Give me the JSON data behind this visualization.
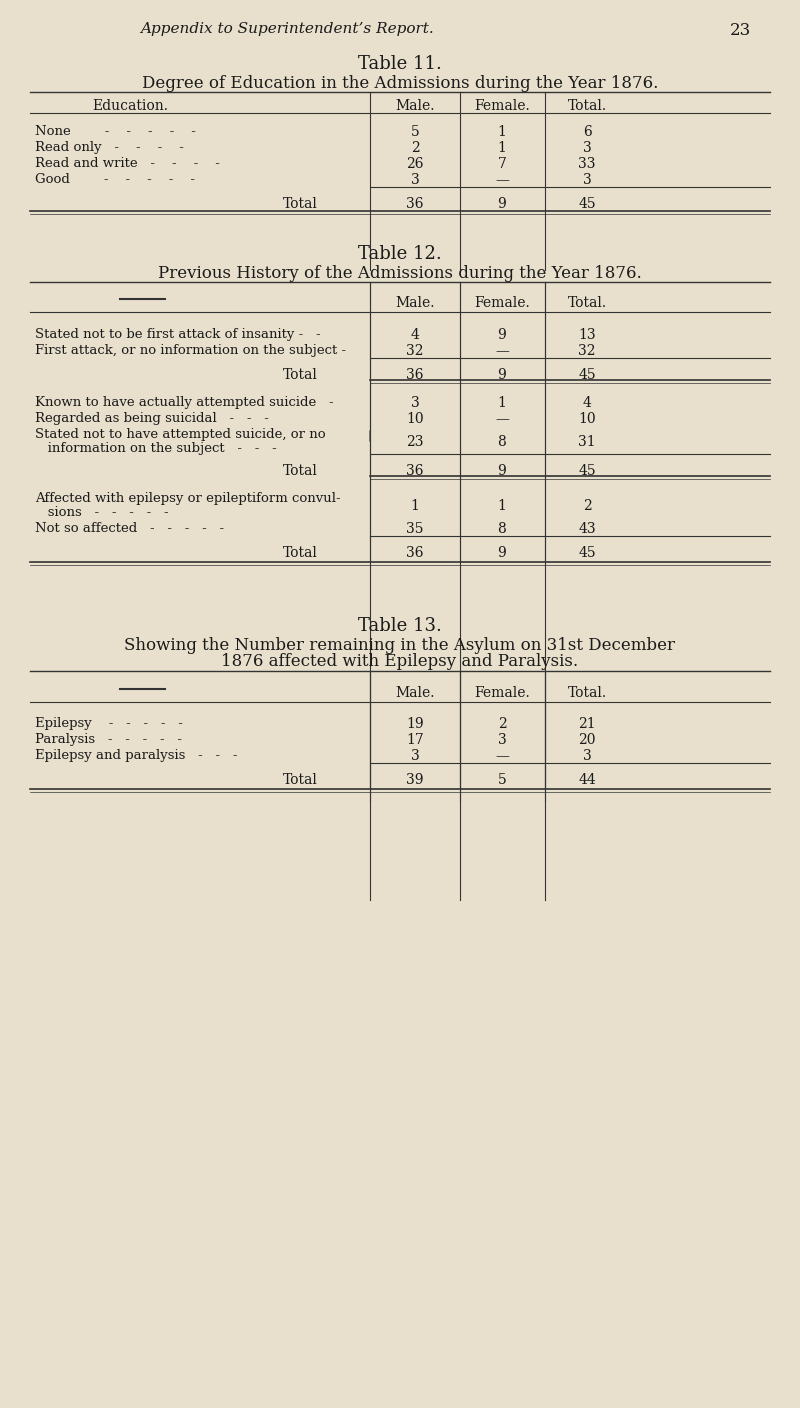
{
  "bg_color": "#e8e0cc",
  "text_color": "#1a1a1a",
  "page_header": "Appendix to Superintendent’s Report.",
  "page_number": "23",
  "table11_title": "Table 11.",
  "table11_subtitle": "Degree of Education in the Admissions during the Year 1876.",
  "table11_col_headers": [
    "Education.",
    "Male.",
    "Female.",
    "Total."
  ],
  "table11_rows": [
    [
      "None        -    -    -    -    -",
      "5",
      "1",
      "6"
    ],
    [
      "Read only   -    -    -    -",
      "2",
      "1",
      "3"
    ],
    [
      "Read and write   -    -    -    -",
      "26",
      "7",
      "33"
    ],
    [
      "Good        -    -    -    -    -",
      "3",
      "—",
      "3"
    ]
  ],
  "table11_total": [
    "Total",
    "36",
    "9",
    "45"
  ],
  "table12_title": "Table 12.",
  "table12_subtitle": "Previous History of the Admissions during the Year 1876.",
  "table12_col_headers": [
    "",
    "Male.",
    "Female.",
    "Total."
  ],
  "table12_section1_rows": [
    [
      "Stated not to be first attack of insanity -   -",
      "4",
      "9",
      "13"
    ],
    [
      "First attack, or no information on the subject -",
      "32",
      "—",
      "32"
    ]
  ],
  "table12_section1_total": [
    "Total",
    "36",
    "9",
    "45"
  ],
  "table12_section2_rows": [
    [
      "Known to have actually attempted suicide   -",
      "3",
      "1",
      "4"
    ],
    [
      "Regarded as being suicidal   -   -   -",
      "10",
      "—",
      "10"
    ],
    [
      "Stated not to have attempted suicide, or no\n   information on the subject      -    -    -",
      "23",
      "8",
      "31"
    ]
  ],
  "table12_section2_total": [
    "Total",
    "36",
    "9",
    "45"
  ],
  "table12_section3_rows": [
    [
      "Affected with epilepsy or epileptiform convul-\n   sions   -   -   -   -   -",
      "1",
      "1",
      "2"
    ],
    [
      "Not so affected   -   -   -   -   -",
      "35",
      "8",
      "43"
    ]
  ],
  "table12_section3_total": [
    "Total",
    "36",
    "9",
    "45"
  ],
  "table13_title": "Table 13.",
  "table13_subtitle1": "Showing the Number remaining in the Asylum on 31st December",
  "table13_subtitle2": "1876 affected with Epilepsy and Paralysis.",
  "table13_col_headers": [
    "",
    "Male.",
    "Female.",
    "Total."
  ],
  "table13_rows": [
    [
      "Epilepsy    -   -   -   -   -",
      "19",
      "2",
      "21"
    ],
    [
      "Paralysis   -   -   -   -   -",
      "17",
      "3",
      "20"
    ],
    [
      "Epilepsy and paralysis   -   -   -",
      "3",
      "—",
      "3"
    ]
  ],
  "table13_total": [
    "Total",
    "39",
    "5",
    "44"
  ]
}
